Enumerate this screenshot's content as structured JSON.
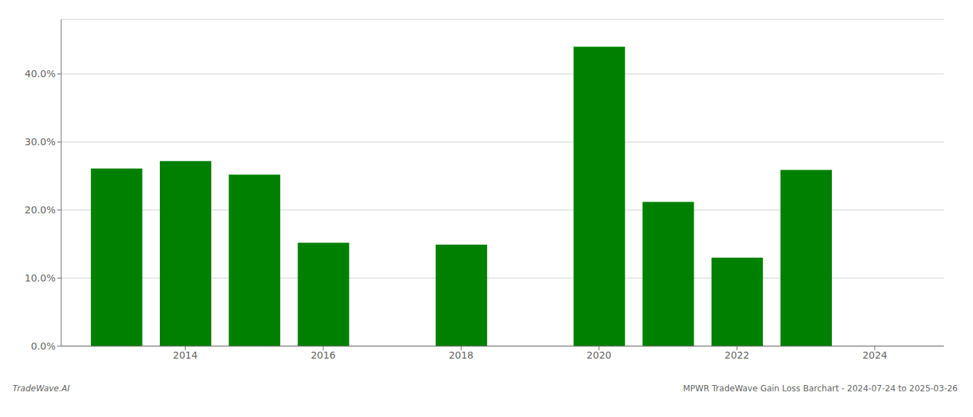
{
  "chart_data": {
    "type": "bar",
    "x": [
      2013,
      2014,
      2015,
      2016,
      2018,
      2020,
      2021,
      2022,
      2023
    ],
    "values": [
      0.261,
      0.272,
      0.252,
      0.152,
      0.149,
      0.44,
      0.212,
      0.13,
      0.259
    ],
    "color": "#008000",
    "xlim": [
      2012.2,
      2025.0
    ],
    "xticks": [
      2014,
      2016,
      2018,
      2020,
      2022,
      2024
    ],
    "ylim": [
      0.0,
      0.48
    ],
    "yticks": [
      {
        "value": 0.0,
        "label": "0.0%"
      },
      {
        "value": 0.1,
        "label": "10.0%"
      },
      {
        "value": 0.2,
        "label": "20.0%"
      },
      {
        "value": 0.3,
        "label": "30.0%"
      },
      {
        "value": 0.4,
        "label": "40.0%"
      }
    ],
    "grid": true,
    "annotations": [
      "TradeWave.AI",
      "MPWR TradeWave Gain Loss Barchart - 2024-07-24 to 2025-03-26"
    ]
  }
}
